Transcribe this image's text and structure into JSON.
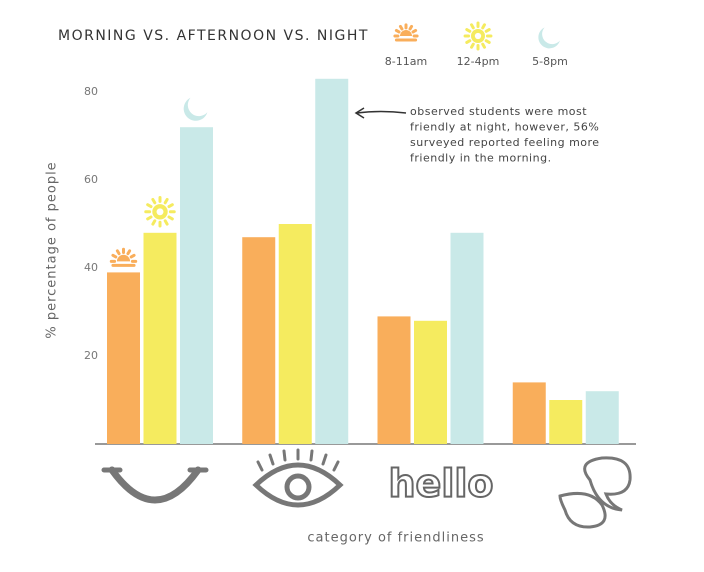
{
  "chart_data": {
    "type": "bar",
    "title": "MORNING VS. AFTERNOON VS. NIGHT",
    "y_label": "% percentage of people",
    "x_label": "category of friendliness",
    "annotation_lines": [
      "observed students were most",
      "friendly at night, however, 56%",
      "surveyed reported feeling more",
      "friendly in the morning."
    ],
    "categories": [
      null,
      null,
      "hello",
      null
    ],
    "series": [
      {
        "name": "8-11am",
        "color": "#f9ae5b",
        "values": [
          39,
          47,
          29,
          14
        ]
      },
      {
        "name": "12-4pm",
        "color": "#f5eb5f",
        "values": [
          48,
          50,
          28,
          10
        ]
      },
      {
        "name": "5-8pm",
        "color": "#c9e9e8",
        "values": [
          72,
          83,
          48,
          12
        ]
      }
    ],
    "ylim": [
      0,
      90
    ],
    "yticks": [
      20,
      40,
      60,
      80
    ],
    "grid": false
  }
}
